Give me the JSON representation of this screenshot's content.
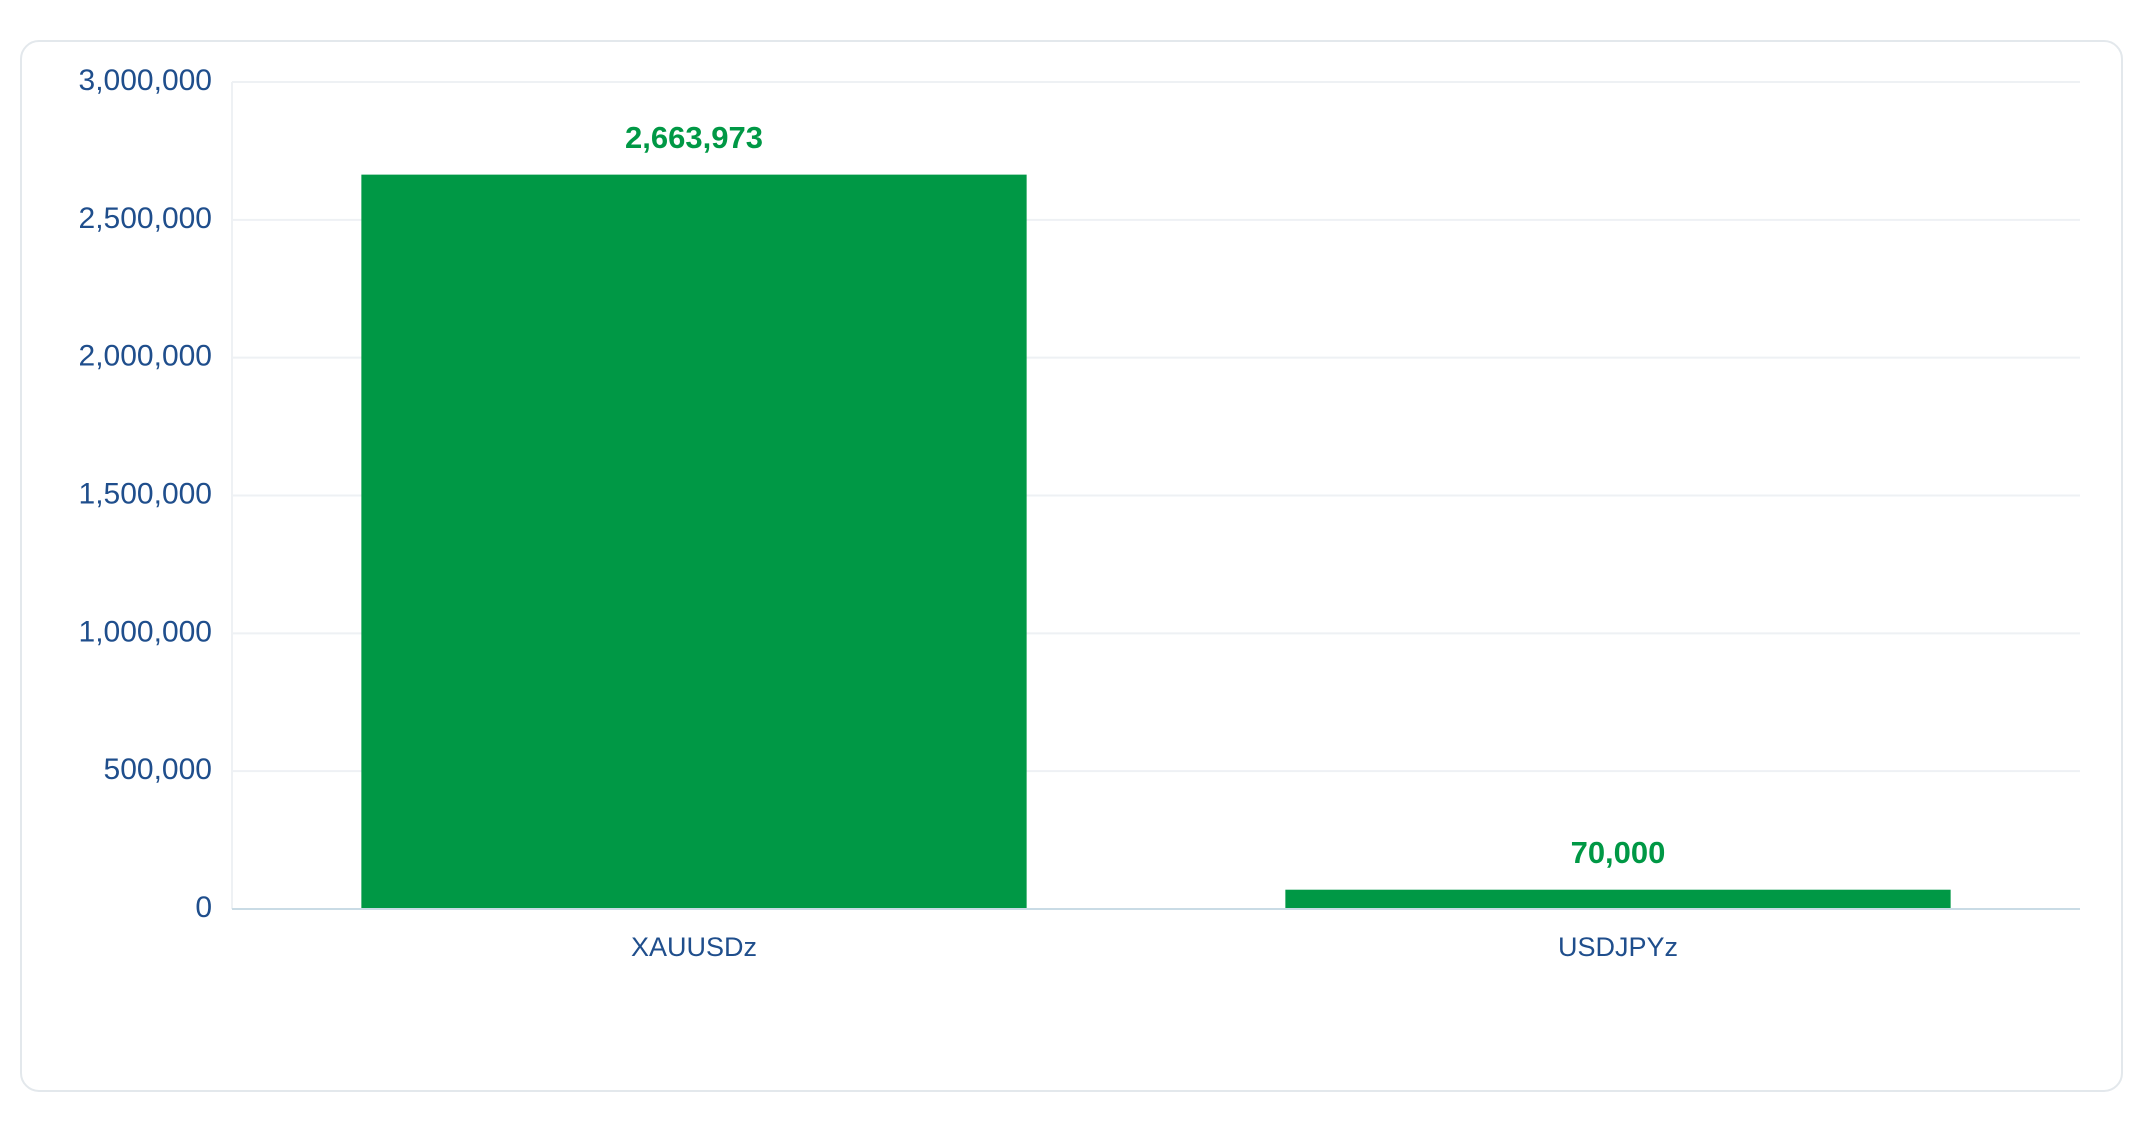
{
  "chart_data": {
    "type": "bar",
    "categories": [
      "XAUUSDz",
      "USDJPYz"
    ],
    "values": [
      2663973,
      70000
    ],
    "value_labels": [
      "2,663,973",
      "70,000"
    ],
    "color": "#009845",
    "ylim": [
      0,
      3000000
    ],
    "yticks": [
      0,
      {
        "value": 500000,
        "label": "500,000"
      },
      {
        "value": 1000000,
        "label": "1,000,000"
      },
      {
        "value": 1500000,
        "label": "1,500,000"
      },
      {
        "value": 2000000,
        "label": "2,000,000"
      },
      {
        "value": 2500000,
        "label": "2,500,000"
      },
      {
        "value": 3000000,
        "label": "3,000,000"
      }
    ],
    "grid": true
  }
}
